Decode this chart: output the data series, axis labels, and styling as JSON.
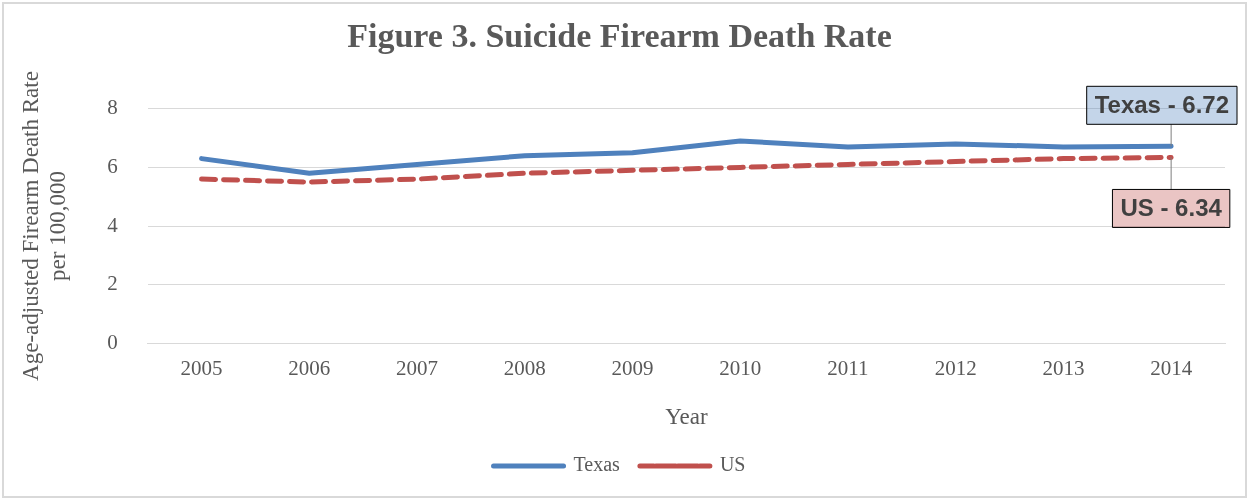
{
  "chart_data": {
    "type": "line",
    "title": "Figure 3. Suicide Firearm Death Rate",
    "xlabel": "Year",
    "ylabel": "Age-adjusted Firearm Death Rate\nper 100,000",
    "categories": [
      "2005",
      "2006",
      "2007",
      "2008",
      "2009",
      "2010",
      "2011",
      "2012",
      "2013",
      "2014"
    ],
    "series": [
      {
        "name": "Texas",
        "color": "#4f81bd",
        "line_style": "solid",
        "values": [
          6.3,
          5.8,
          6.1,
          6.4,
          6.5,
          6.9,
          6.7,
          6.8,
          6.7,
          6.72
        ]
      },
      {
        "name": "US",
        "color": "#c0504d",
        "line_style": "dashed",
        "values": [
          5.6,
          5.5,
          5.6,
          5.8,
          5.9,
          6.0,
          6.1,
          6.2,
          6.3,
          6.34
        ]
      }
    ],
    "annotations": [
      {
        "text": "Texas - 6.72",
        "x": "2014",
        "y": 6.72
      },
      {
        "text": "US - 6.34",
        "x": "2014",
        "y": 6.34
      }
    ],
    "ylim": [
      0,
      8
    ],
    "yticks": [
      0,
      2,
      4,
      6,
      8
    ],
    "grid": "y",
    "legend": "bottom",
    "marker": "none"
  }
}
